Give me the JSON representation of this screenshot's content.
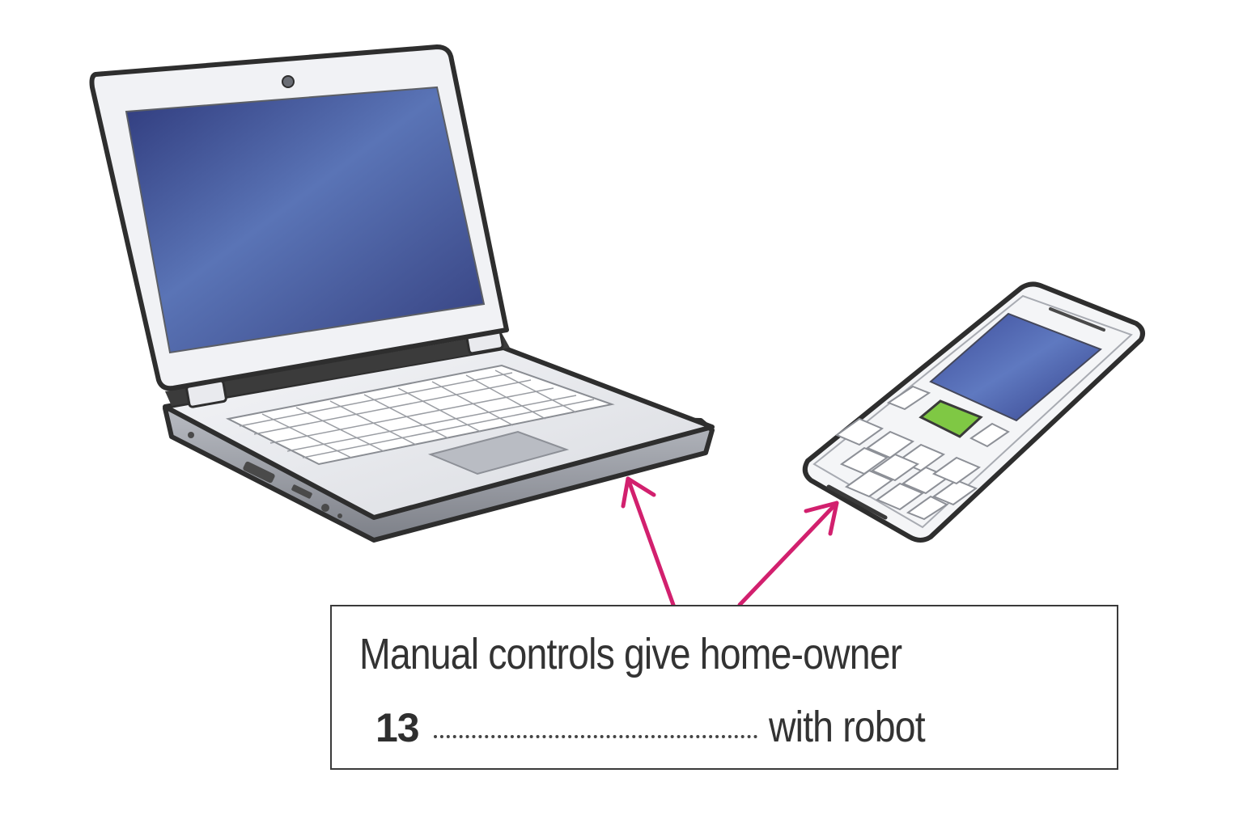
{
  "caption": {
    "line1": "Manual controls give home-owner",
    "question_number": "13",
    "line2_end": "with robot"
  },
  "colors": {
    "arrow": "#d2206e",
    "screen": "#3f4f96",
    "phone_key": "#7fc844",
    "body_outline": "#3a3a3a"
  },
  "illustrations": [
    "laptop-illustration",
    "mobile-phone-illustration"
  ]
}
